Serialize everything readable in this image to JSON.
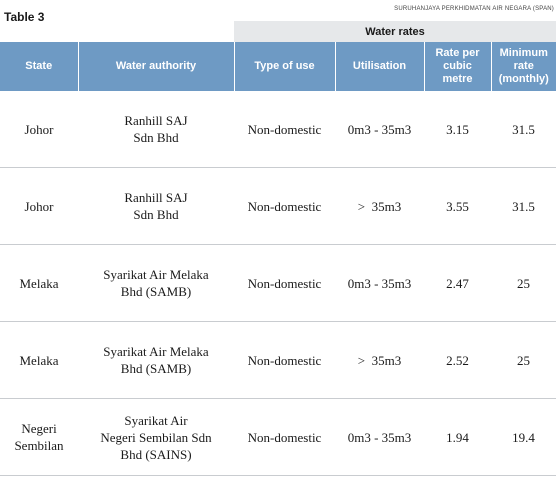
{
  "title": "Table 3",
  "source": "SURUHANJAYA PERKHIDMATAN AIR NEGARA (SPAN)",
  "group_header": "Water rates",
  "columns": [
    "State",
    "Water authority",
    "Type of use",
    "Utilisation",
    "Rate per\ncubic\nmetre",
    "Minimum\nrate\n(monthly)"
  ],
  "rows": [
    {
      "state": "Johor",
      "authority": "Ranhill SAJ\nSdn Bhd",
      "type": "Non-domestic",
      "utilisation": "0m3 - 35m3",
      "rate": "3.15",
      "minimum": "31.5"
    },
    {
      "state": "Johor",
      "authority": "Ranhill SAJ\nSdn Bhd",
      "type": "Non-domestic",
      "utilisation": ">  35m3",
      "rate": "3.55",
      "minimum": "31.5"
    },
    {
      "state": "Melaka",
      "authority": "Syarikat Air Melaka\nBhd (SAMB)",
      "type": "Non-domestic",
      "utilisation": "0m3 - 35m3",
      "rate": "2.47",
      "minimum": "25"
    },
    {
      "state": "Melaka",
      "authority": "Syarikat Air Melaka\nBhd (SAMB)",
      "type": "Non-domestic",
      "utilisation": ">  35m3",
      "rate": "2.52",
      "minimum": "25"
    },
    {
      "state": "Negeri\nSembilan",
      "authority": "Syarikat Air\nNegeri Sembilan Sdn\nBhd (SAINS)",
      "type": "Non-domestic",
      "utilisation": "0m3 - 35m3",
      "rate": "1.94",
      "minimum": "19.4"
    }
  ]
}
